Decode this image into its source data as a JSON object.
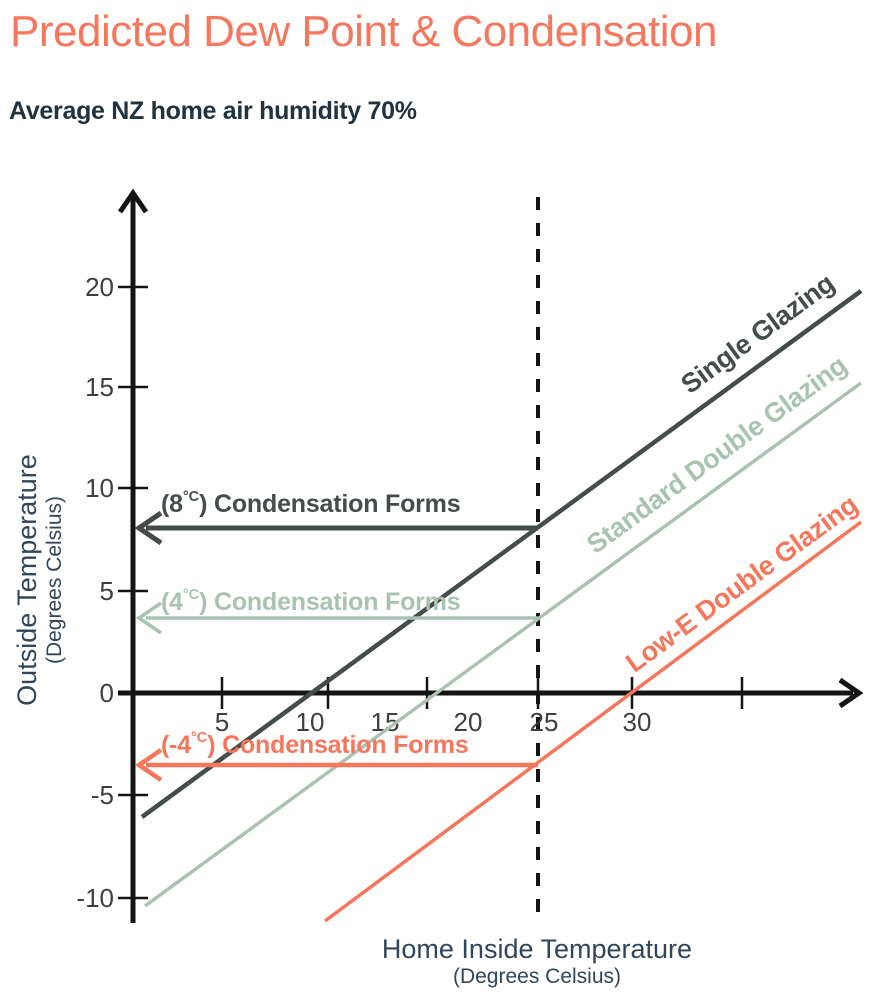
{
  "header": {
    "title": "Predicted Dew Point & Condensation",
    "subtitle": "Average NZ home air humidity 70%"
  },
  "chart_data": {
    "type": "line",
    "title": "Predicted Dew Point & Condensation",
    "subtitle": "Average NZ home air humidity 70%",
    "x_axis": {
      "label": "Home Inside Temperature",
      "sublabel": "(Degrees Celsius)",
      "ticks": [
        5,
        10,
        15,
        20,
        25,
        30
      ],
      "range": [
        0,
        36
      ]
    },
    "y_axis": {
      "label": "Outside Temperature",
      "sublabel": "(Degrees Celsius)",
      "ticks": [
        20,
        15,
        10,
        5,
        0,
        -5,
        -10
      ],
      "range": [
        -11,
        24
      ]
    },
    "reference_line": {
      "axis": "x",
      "value": 25,
      "style": "dashed"
    },
    "series": [
      {
        "name": "Single Glazing",
        "color": "#454D4A",
        "points": [
          [
            0.5,
            -6
          ],
          [
            10.5,
            0
          ],
          [
            25,
            8
          ],
          [
            35,
            13.8
          ]
        ],
        "condensation_forms_at": 8
      },
      {
        "name": "Standard Double Glazing",
        "color": "#A9C3B3",
        "points": [
          [
            0.7,
            -10.4
          ],
          [
            17.6,
            0
          ],
          [
            25,
            3.7
          ],
          [
            35,
            9.2
          ]
        ],
        "condensation_forms_at": 4
      },
      {
        "name": "Low-E Double Glazing",
        "color": "#F4765B",
        "points": [
          [
            11.4,
            -11
          ],
          [
            25,
            -3.5
          ],
          [
            30,
            0
          ],
          [
            35,
            3.9
          ]
        ],
        "condensation_forms_at": -4
      }
    ],
    "annotations": [
      {
        "prefix": "(8",
        "sup": "°C",
        "suffix": ") Condensation Forms",
        "y": 8,
        "color": "#454D4A",
        "series": "Single Glazing"
      },
      {
        "prefix": "(4",
        "sup": "°C",
        "suffix": ") Condensation Forms",
        "y": 4,
        "color": "#A9C3B3",
        "series": "Standard Double Glazing"
      },
      {
        "prefix": "(-4",
        "sup": "°C",
        "suffix": ") Condensation Forms",
        "y": -4,
        "color": "#F4765B",
        "series": "Low-E Double Glazing"
      }
    ],
    "grid": false,
    "legend": "labels-along-lines"
  },
  "colors": {
    "accent": "#F5785E",
    "charcoal": "#454D4A",
    "sage": "#A9C3B3",
    "navy": "#20333F",
    "slate": "#31465A",
    "tick_label": "#3F3F3F",
    "axis": "#141414",
    "background": "#FFFFFF"
  }
}
